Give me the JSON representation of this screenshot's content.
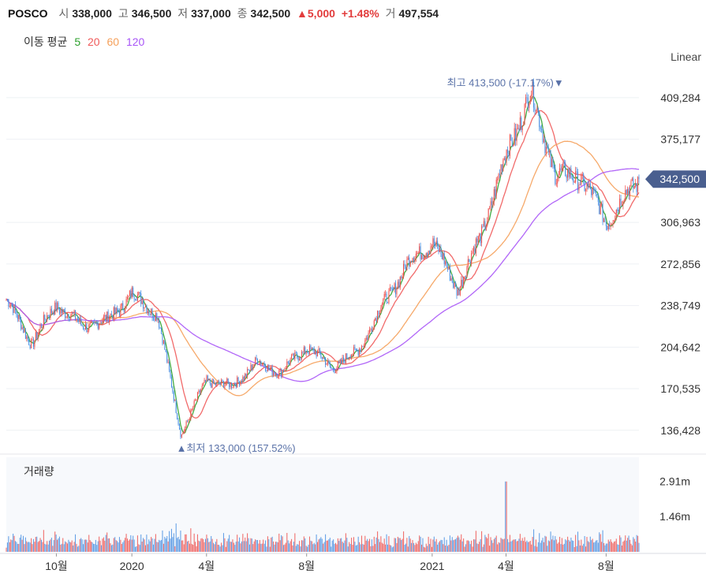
{
  "header": {
    "ticker": "POSCO",
    "open_label": "시",
    "open": "338,000",
    "high_label": "고",
    "high": "346,500",
    "low_label": "저",
    "low": "337,000",
    "close_label": "종",
    "close": "342,500",
    "change_arrow": "▲",
    "change": "5,000",
    "change_pct": "+1.48%",
    "volume_label": "거",
    "volume": "497,554"
  },
  "ma_legend": {
    "title": "이동 평균",
    "items": [
      {
        "label": "5",
        "color": "#2ca02c"
      },
      {
        "label": "20",
        "color": "#f05a5a"
      },
      {
        "label": "60",
        "color": "#f5a05a"
      },
      {
        "label": "120",
        "color": "#a855f7"
      }
    ]
  },
  "scale_mode": "Linear",
  "volume_title": "거래량",
  "colors": {
    "up": "#ef5350",
    "down": "#4a90e2",
    "current_price_bg": "#4a5f8f",
    "annotation": "#5a72a8"
  },
  "chart_data": {
    "type": "candlestick",
    "price_axis": {
      "ticks": [
        "409,284",
        "375,177",
        "342,500",
        "306,963",
        "272,856",
        "238,749",
        "204,642",
        "170,535",
        "136,428"
      ],
      "tick_values": [
        409284,
        375177,
        306963,
        272856,
        238749,
        204642,
        170535,
        136428
      ],
      "current_price_label": "342,500",
      "current_price": 342500,
      "range": [
        124000,
        428000
      ]
    },
    "volume_axis": {
      "ticks": [
        "2.91m",
        "1.46m"
      ],
      "tick_values": [
        2.91,
        1.46
      ],
      "range": [
        0,
        3.9
      ],
      "unit": "m"
    },
    "x_axis": {
      "labels": [
        {
          "text": "10월",
          "date": "2019-10"
        },
        {
          "text": "2020",
          "date": "2020-01"
        },
        {
          "text": "4월",
          "date": "2020-04"
        },
        {
          "text": "8월",
          "date": "2020-08"
        },
        {
          "text": "2021",
          "date": "2021-01"
        },
        {
          "text": "4월",
          "date": "2021-04"
        },
        {
          "text": "8월",
          "date": "2021-08"
        }
      ]
    },
    "annotations": {
      "high": {
        "text": "최고 413,500 (-17.17%)▼",
        "value": 413500,
        "date": "2021-05"
      },
      "low": {
        "text": "▲최저 133,000 (157.52%)",
        "value": 133000,
        "date": "2020-03"
      }
    },
    "price_path": [
      [
        "2019-08",
        244000
      ],
      [
        "2019-09",
        208000
      ],
      [
        "2019-10",
        240000
      ],
      [
        "2019-11",
        222000
      ],
      [
        "2019-12",
        226000
      ],
      [
        "2020-01",
        248000
      ],
      [
        "2020-02",
        232000
      ],
      [
        "2020-03",
        133000
      ],
      [
        "2020-04",
        178000
      ],
      [
        "2020-05",
        172000
      ],
      [
        "2020-06",
        192000
      ],
      [
        "2020-07",
        184000
      ],
      [
        "2020-08",
        205000
      ],
      [
        "2020-09",
        188000
      ],
      [
        "2020-10",
        200000
      ],
      [
        "2020-11",
        238000
      ],
      [
        "2020-12",
        272000
      ],
      [
        "2021-01",
        292000
      ],
      [
        "2021-02",
        252000
      ],
      [
        "2021-03",
        296000
      ],
      [
        "2021-04",
        362000
      ],
      [
        "2021-05",
        413500
      ],
      [
        "2021-06",
        345000
      ],
      [
        "2021-07",
        345000
      ],
      [
        "2021-08",
        308000
      ],
      [
        "2021-09",
        342500
      ]
    ],
    "volume_spike": {
      "date": "2021-04",
      "value": 2.9
    }
  }
}
